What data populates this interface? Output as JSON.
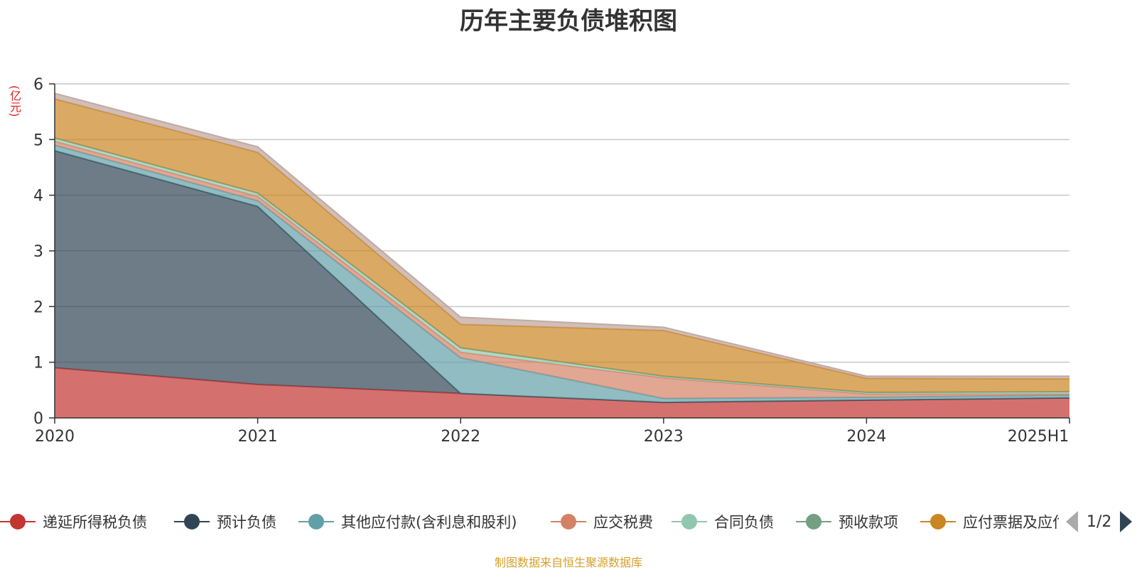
{
  "chart_data": {
    "type": "area",
    "stacked": true,
    "title": "历年主要负债堆积图",
    "unit_label": "(亿元)",
    "categories": [
      "2020",
      "2021",
      "2022",
      "2023",
      "2024",
      "2025H1"
    ],
    "ylim": [
      0,
      6
    ],
    "yticks": [
      0,
      1,
      2,
      3,
      4,
      5,
      6
    ],
    "grid": true,
    "legend_position": "bottom",
    "series": [
      {
        "name": "递延所得税负债",
        "color": "#c23531",
        "values": [
          0.9,
          0.6,
          0.44,
          0.28,
          0.32,
          0.36
        ]
      },
      {
        "name": "预计负债",
        "color": "#2f4554",
        "values": [
          3.9,
          3.2,
          0.0,
          0.0,
          0.0,
          0.0
        ]
      },
      {
        "name": "其他应付款(含利息和股利)",
        "color": "#61a0a8",
        "values": [
          0.1,
          0.1,
          0.64,
          0.07,
          0.05,
          0.05
        ]
      },
      {
        "name": "应交税费",
        "color": "#d48265",
        "values": [
          0.07,
          0.08,
          0.1,
          0.37,
          0.06,
          0.02
        ]
      },
      {
        "name": "合同负债",
        "color": "#91c7ae",
        "values": [
          0.06,
          0.06,
          0.08,
          0.03,
          0.03,
          0.04
        ]
      },
      {
        "name": "预收款项",
        "color": "#749f83",
        "values": [
          0.0,
          0.0,
          0.0,
          0.0,
          0.0,
          0.0
        ]
      },
      {
        "name": "应付票据及应付账款",
        "color": "#ca8622",
        "values": [
          0.7,
          0.73,
          0.42,
          0.82,
          0.25,
          0.23
        ]
      },
      {
        "name": "",
        "color": "#bda29a",
        "values": [
          0.1,
          0.1,
          0.13,
          0.06,
          0.04,
          0.05
        ]
      }
    ]
  },
  "legend": {
    "page_indicator": "1/2"
  },
  "footer": {
    "source_note": "制图数据来自恒生聚源数据库"
  }
}
